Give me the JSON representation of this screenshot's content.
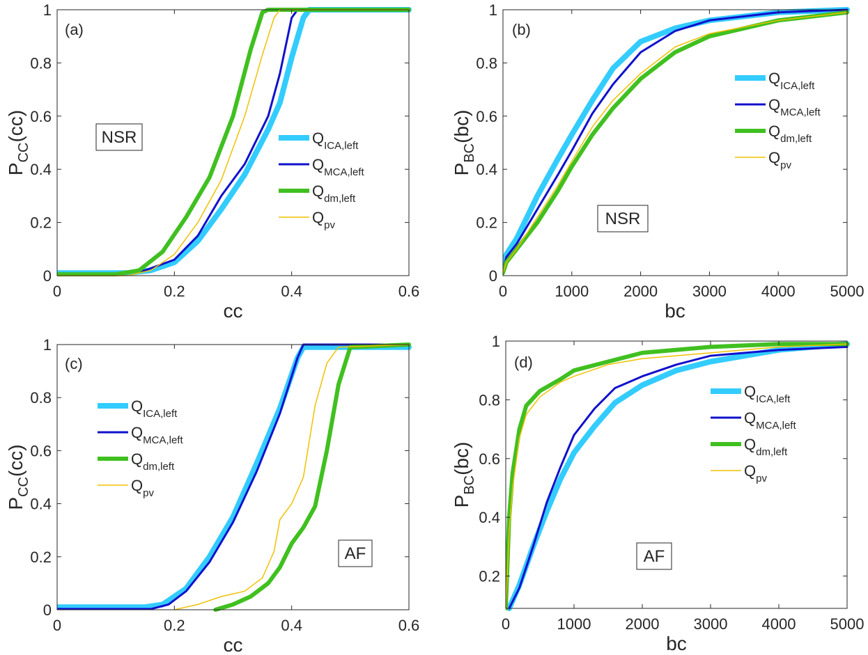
{
  "chart_data": [
    {
      "panel": "(a)",
      "type": "line",
      "title": "",
      "xlabel": "cc",
      "ylabel": "P",
      "ylabel_sub": "CC",
      "ylabel_arg": "(cc)",
      "xlim": [
        0,
        0.6
      ],
      "ylim": [
        0,
        1
      ],
      "xticks": [
        0,
        0.2,
        0.4,
        0.6
      ],
      "xtick_labels": [
        "0",
        "0.2",
        "0.4",
        "0.6"
      ],
      "yticks": [
        0,
        0.2,
        0.4,
        0.6,
        0.8,
        1
      ],
      "ytick_labels": [
        "0",
        "0.2",
        "0.4",
        "0.6",
        "0.8",
        "1"
      ],
      "annotation": "NSR",
      "legend_position": "middle-right",
      "series": [
        {
          "name": "Q",
          "sub": "ICA,left",
          "color": "#33ccff",
          "width": 8,
          "x": [
            0,
            0.12,
            0.16,
            0.2,
            0.24,
            0.28,
            0.32,
            0.36,
            0.38,
            0.4,
            0.42,
            0.43,
            0.6
          ],
          "y": [
            0.01,
            0.01,
            0.02,
            0.05,
            0.13,
            0.25,
            0.38,
            0.55,
            0.65,
            0.82,
            0.97,
            1,
            1
          ]
        },
        {
          "name": "Q",
          "sub": "MCA,left",
          "color": "#1010cc",
          "width": 3,
          "x": [
            0,
            0.1,
            0.15,
            0.2,
            0.24,
            0.28,
            0.32,
            0.36,
            0.38,
            0.4,
            0.41,
            0.6
          ],
          "y": [
            0.003,
            0.003,
            0.02,
            0.06,
            0.15,
            0.3,
            0.42,
            0.6,
            0.76,
            0.97,
            1,
            1
          ]
        },
        {
          "name": "Q",
          "sub": "dm,left",
          "color": "#40c020",
          "width": 6,
          "x": [
            0,
            0.1,
            0.14,
            0.18,
            0.22,
            0.26,
            0.3,
            0.33,
            0.35,
            0.36,
            0.6
          ],
          "y": [
            0.005,
            0.005,
            0.02,
            0.09,
            0.22,
            0.37,
            0.6,
            0.85,
            0.99,
            1,
            1
          ]
        },
        {
          "name": "Q",
          "sub": "pv",
          "color": "#f0c000",
          "width": 1.5,
          "x": [
            0,
            0.12,
            0.16,
            0.2,
            0.24,
            0.28,
            0.32,
            0.35,
            0.37,
            0.38,
            0.6
          ],
          "y": [
            0,
            0,
            0.02,
            0.08,
            0.2,
            0.36,
            0.6,
            0.83,
            0.97,
            1,
            1
          ]
        }
      ]
    },
    {
      "panel": "(b)",
      "type": "line",
      "title": "",
      "xlabel": "bc",
      "ylabel": "P",
      "ylabel_sub": "BC",
      "ylabel_arg": "(bc)",
      "xlim": [
        0,
        5000
      ],
      "ylim": [
        0,
        1
      ],
      "xticks": [
        0,
        1000,
        2000,
        3000,
        4000,
        5000
      ],
      "xtick_labels": [
        "0",
        "1000",
        "2000",
        "3000",
        "4000",
        "5000"
      ],
      "yticks": [
        0,
        0.2,
        0.4,
        0.6,
        0.8,
        1
      ],
      "ytick_labels": [
        "0",
        "0.2",
        "0.4",
        "0.6",
        "0.8",
        "1"
      ],
      "annotation": "NSR",
      "legend_position": "top-right",
      "series": [
        {
          "name": "Q",
          "sub": "ICA,left",
          "color": "#33ccff",
          "width": 8,
          "x": [
            0,
            50,
            200,
            500,
            800,
            1000,
            1300,
            1600,
            2000,
            2500,
            3000,
            4000,
            5000
          ],
          "y": [
            0.03,
            0.08,
            0.14,
            0.3,
            0.44,
            0.53,
            0.66,
            0.78,
            0.88,
            0.93,
            0.96,
            0.99,
            1
          ]
        },
        {
          "name": "Q",
          "sub": "MCA,left",
          "color": "#1010cc",
          "width": 3,
          "x": [
            0,
            50,
            200,
            500,
            800,
            1000,
            1300,
            1600,
            2000,
            2500,
            3000,
            4000,
            5000
          ],
          "y": [
            0.02,
            0.07,
            0.12,
            0.25,
            0.38,
            0.47,
            0.61,
            0.72,
            0.84,
            0.92,
            0.96,
            0.99,
            1
          ]
        },
        {
          "name": "Q",
          "sub": "dm,left",
          "color": "#40c020",
          "width": 6,
          "x": [
            0,
            50,
            200,
            500,
            800,
            1000,
            1300,
            1600,
            2000,
            2500,
            3000,
            4000,
            5000
          ],
          "y": [
            0.01,
            0.05,
            0.1,
            0.2,
            0.32,
            0.41,
            0.53,
            0.63,
            0.74,
            0.84,
            0.9,
            0.96,
            0.99
          ]
        },
        {
          "name": "Q",
          "sub": "pv",
          "color": "#f0c000",
          "width": 1.5,
          "x": [
            0,
            50,
            200,
            500,
            800,
            1000,
            1300,
            1600,
            2000,
            2500,
            3000,
            4000,
            5000
          ],
          "y": [
            0.01,
            0.05,
            0.1,
            0.22,
            0.34,
            0.43,
            0.56,
            0.66,
            0.76,
            0.86,
            0.91,
            0.96,
            0.99
          ]
        }
      ]
    },
    {
      "panel": "(c)",
      "type": "line",
      "title": "",
      "xlabel": "cc",
      "ylabel": "P",
      "ylabel_sub": "CC",
      "ylabel_arg": "(cc)",
      "xlim": [
        0,
        0.6
      ],
      "ylim": [
        0,
        1
      ],
      "xticks": [
        0,
        0.2,
        0.4,
        0.6
      ],
      "xtick_labels": [
        "0",
        "0.2",
        "0.4",
        "0.6"
      ],
      "yticks": [
        0,
        0.2,
        0.4,
        0.6,
        0.8,
        1
      ],
      "ytick_labels": [
        "0",
        "0.2",
        "0.4",
        "0.6",
        "0.8",
        "1"
      ],
      "annotation": "AF",
      "legend_position": "middle-left",
      "series": [
        {
          "name": "Q",
          "sub": "ICA,left",
          "color": "#33ccff",
          "width": 8,
          "x": [
            0,
            0.15,
            0.18,
            0.22,
            0.26,
            0.3,
            0.34,
            0.38,
            0.41,
            0.42,
            0.6
          ],
          "y": [
            0.01,
            0.01,
            0.02,
            0.08,
            0.2,
            0.35,
            0.55,
            0.76,
            0.95,
            0.99,
            0.99
          ]
        },
        {
          "name": "Q",
          "sub": "MCA,left",
          "color": "#1010cc",
          "width": 3,
          "x": [
            0,
            0.16,
            0.19,
            0.22,
            0.26,
            0.3,
            0.34,
            0.38,
            0.41,
            0.42,
            0.6
          ],
          "y": [
            0.003,
            0.003,
            0.02,
            0.07,
            0.18,
            0.33,
            0.52,
            0.74,
            0.95,
            1,
            1
          ]
        },
        {
          "name": "Q",
          "sub": "dm,left",
          "color": "#40c020",
          "width": 6,
          "x": [
            0.27,
            0.3,
            0.33,
            0.36,
            0.38,
            0.4,
            0.42,
            0.44,
            0.46,
            0.48,
            0.5,
            0.6
          ],
          "y": [
            0,
            0.02,
            0.05,
            0.1,
            0.16,
            0.25,
            0.31,
            0.39,
            0.6,
            0.85,
            0.99,
            1
          ]
        },
        {
          "name": "Q",
          "sub": "pv",
          "color": "#f0c000",
          "width": 1.5,
          "x": [
            0.2,
            0.24,
            0.28,
            0.32,
            0.35,
            0.37,
            0.38,
            0.4,
            0.42,
            0.44,
            0.46,
            0.48,
            0.6
          ],
          "y": [
            0,
            0.02,
            0.05,
            0.07,
            0.12,
            0.22,
            0.34,
            0.4,
            0.5,
            0.77,
            0.93,
            0.99,
            1
          ]
        }
      ]
    },
    {
      "panel": "(d)",
      "type": "line",
      "title": "",
      "xlabel": "bc",
      "ylabel": "P",
      "ylabel_sub": "BC",
      "ylabel_arg": "(bc)",
      "xlim": [
        0,
        5000
      ],
      "ylim": [
        0.09,
        1
      ],
      "xticks": [
        0,
        1000,
        2000,
        3000,
        4000,
        5000
      ],
      "xtick_labels": [
        "0",
        "1000",
        "2000",
        "3000",
        "4000",
        "5000"
      ],
      "yticks": [
        0.2,
        0.4,
        0.6,
        0.8,
        1
      ],
      "ytick_labels": [
        "0.2",
        "0.4",
        "0.6",
        "0.8",
        "1"
      ],
      "annotation": "AF",
      "legend_position": "middle-right",
      "series": [
        {
          "name": "Q",
          "sub": "ICA,left",
          "color": "#33ccff",
          "width": 8,
          "x": [
            50,
            200,
            400,
            600,
            800,
            1000,
            1300,
            1600,
            2000,
            2500,
            3000,
            4000,
            5000
          ],
          "y": [
            0.09,
            0.17,
            0.3,
            0.42,
            0.53,
            0.62,
            0.71,
            0.79,
            0.85,
            0.9,
            0.93,
            0.97,
            0.99
          ]
        },
        {
          "name": "Q",
          "sub": "MCA,left",
          "color": "#1010cc",
          "width": 3,
          "x": [
            50,
            200,
            400,
            600,
            800,
            1000,
            1300,
            1600,
            2000,
            2500,
            3000,
            4000,
            5000
          ],
          "y": [
            0.09,
            0.16,
            0.3,
            0.45,
            0.57,
            0.68,
            0.77,
            0.84,
            0.88,
            0.92,
            0.95,
            0.97,
            0.98
          ]
        },
        {
          "name": "Q",
          "sub": "dm,left",
          "color": "#40c020",
          "width": 6,
          "x": [
            0,
            50,
            100,
            200,
            300,
            500,
            800,
            1000,
            1500,
            2000,
            3000,
            4000,
            5000
          ],
          "y": [
            0.09,
            0.4,
            0.55,
            0.7,
            0.78,
            0.83,
            0.87,
            0.9,
            0.93,
            0.96,
            0.98,
            0.99,
            0.99
          ]
        },
        {
          "name": "Q",
          "sub": "pv",
          "color": "#f0c000",
          "width": 1.5,
          "x": [
            0,
            50,
            100,
            200,
            300,
            500,
            800,
            1000,
            1500,
            2000,
            3000,
            4000,
            5000
          ],
          "y": [
            0.09,
            0.35,
            0.5,
            0.67,
            0.75,
            0.81,
            0.86,
            0.88,
            0.92,
            0.94,
            0.96,
            0.98,
            0.99
          ]
        }
      ]
    }
  ]
}
